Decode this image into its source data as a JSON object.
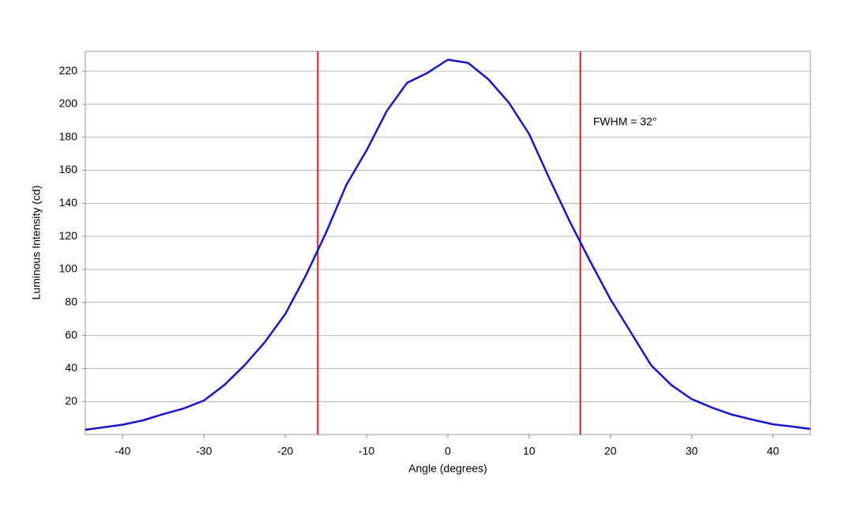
{
  "chart_data": {
    "type": "line",
    "x_label": "Angle (degrees)",
    "y_label": "Luminous Intensity (cd)",
    "annotation": "FWHM = 32°",
    "x": [
      -44.6,
      -42.5,
      -40,
      -37.5,
      -35,
      -32.5,
      -30,
      -27.5,
      -25,
      -22.5,
      -20,
      -17.5,
      -15,
      -12.5,
      -10,
      -7.5,
      -5,
      -2.5,
      0,
      2.5,
      5,
      7.5,
      10,
      12.5,
      15,
      17.5,
      20,
      22.5,
      25,
      27.5,
      30,
      32.5,
      35,
      37.5,
      40,
      42.5,
      44.6
    ],
    "series": [
      {
        "color": "#1414d2",
        "values": [
          2.9,
          4.3,
          6,
          8.6,
          12.4,
          15.8,
          20.6,
          30,
          42,
          56,
          73,
          96,
          122,
          151,
          172,
          196,
          213,
          219,
          227,
          225,
          215,
          201,
          182,
          155,
          129,
          105,
          82,
          62,
          42,
          30,
          21.5,
          16.3,
          12,
          9,
          6.2,
          4.8,
          3.4
        ]
      }
    ],
    "vlines": [
      {
        "x": -16,
        "color": "#e02020"
      },
      {
        "x": 16.3,
        "color": "#e02020"
      }
    ],
    "xlim": [
      -44.6,
      44.6
    ],
    "ylim": [
      0,
      232
    ],
    "xticks": [
      -40,
      -30,
      -20,
      -10,
      0,
      10,
      20,
      30,
      40
    ],
    "yticks": [
      20,
      40,
      60,
      80,
      100,
      120,
      140,
      160,
      180,
      200,
      220
    ],
    "grid": true
  }
}
